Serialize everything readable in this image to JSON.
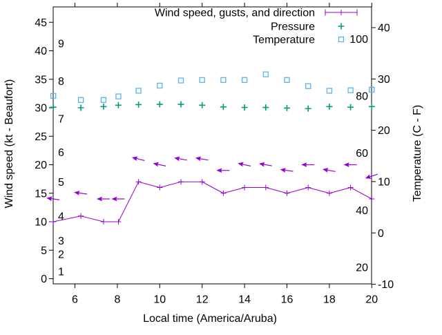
{
  "chart_data": {
    "type": "line",
    "title": "",
    "xlabel": "Local time (America/Aruba)",
    "ylabel": "Wind speed (kt - Beaufort)",
    "y2label": "Temperature (C - F)",
    "grid": false,
    "x_axis": {
      "ticks": [
        6,
        8,
        10,
        12,
        14,
        16,
        18,
        20
      ],
      "range": [
        4.98,
        20.02
      ]
    },
    "y_left_axis": {
      "unit": "kt",
      "ticks": [
        0,
        5,
        10,
        15,
        20,
        25,
        30,
        35,
        40,
        45
      ],
      "range": [
        -1,
        47.6
      ],
      "inner_labels_beaufort": [
        {
          "label": "1",
          "kt": 1.3
        },
        {
          "label": "2",
          "kt": 4.3
        },
        {
          "label": "3",
          "kt": 6.7
        },
        {
          "label": "4",
          "kt": 11.0
        },
        {
          "label": "5",
          "kt": 17.0
        },
        {
          "label": "6",
          "kt": 22.2
        },
        {
          "label": "7",
          "kt": 28.1
        },
        {
          "label": "8",
          "kt": 34.7
        },
        {
          "label": "9",
          "kt": 41.3
        }
      ]
    },
    "y_right_axis": {
      "unit": "C",
      "ticks": [
        -10,
        0,
        10,
        20,
        30,
        40
      ],
      "range": [
        -10,
        44
      ],
      "inner_labels_fahrenheit": [
        {
          "label": "20",
          "c": -6.7
        },
        {
          "label": "40",
          "c": 4.4
        },
        {
          "label": "60",
          "c": 15.6
        },
        {
          "label": "80",
          "c": 26.7
        },
        {
          "label": "100",
          "c": 37.8
        }
      ]
    },
    "x": [
      4.98,
      6.28,
      7.35,
      8.05,
      9,
      10,
      11,
      12,
      13,
      14,
      15,
      16,
      17,
      18,
      19,
      20
    ],
    "series": [
      {
        "name": "Wind speed, gusts, and direction",
        "axis": "left",
        "style": "line+plus",
        "color": "#9400d3",
        "values": [
          10,
          11,
          10,
          10,
          17,
          16,
          17,
          17,
          15,
          16,
          16,
          15,
          16,
          15,
          16,
          14
        ]
      },
      {
        "name": "Wind gusts with direction arrows",
        "axis": "left",
        "style": "arrow",
        "color": "#9400d3",
        "values": [
          14,
          15,
          14,
          14,
          21,
          20,
          21,
          21,
          19,
          20,
          20,
          19,
          20,
          19,
          20,
          18
        ],
        "arrow_tilt_deg": [
          8,
          8,
          0,
          0,
          14,
          12,
          10,
          10,
          0,
          12,
          10,
          8,
          0,
          10,
          0,
          -18
        ]
      },
      {
        "name": "Pressure",
        "axis": "left",
        "style": "plus",
        "color": "#009e73",
        "values": [
          30.1,
          30.0,
          30.2,
          30.45,
          30.55,
          30.6,
          30.6,
          30.45,
          30.15,
          30.05,
          30.05,
          29.95,
          29.85,
          30.2,
          30.1,
          30.2
        ]
      },
      {
        "name": "Temperature",
        "axis": "right",
        "style": "square",
        "color": "#56b4e9",
        "values": [
          26.7,
          25.9,
          25.9,
          26.6,
          27.7,
          28.7,
          29.7,
          29.8,
          29.8,
          29.8,
          30.9,
          29.8,
          28.6,
          27.7,
          27.8,
          27.9
        ]
      }
    ],
    "legend": {
      "position": "top-right-inside",
      "entries": [
        {
          "label": "Wind speed, gusts, and direction",
          "series": 0
        },
        {
          "label": "Pressure",
          "series": 2
        },
        {
          "label": "Temperature",
          "series": 3
        }
      ]
    }
  },
  "colors": {
    "axis": "#000000",
    "background": "#ffffff",
    "wind": "#9400d3",
    "pressure": "#009e73",
    "temperature": "#56b4e9"
  }
}
